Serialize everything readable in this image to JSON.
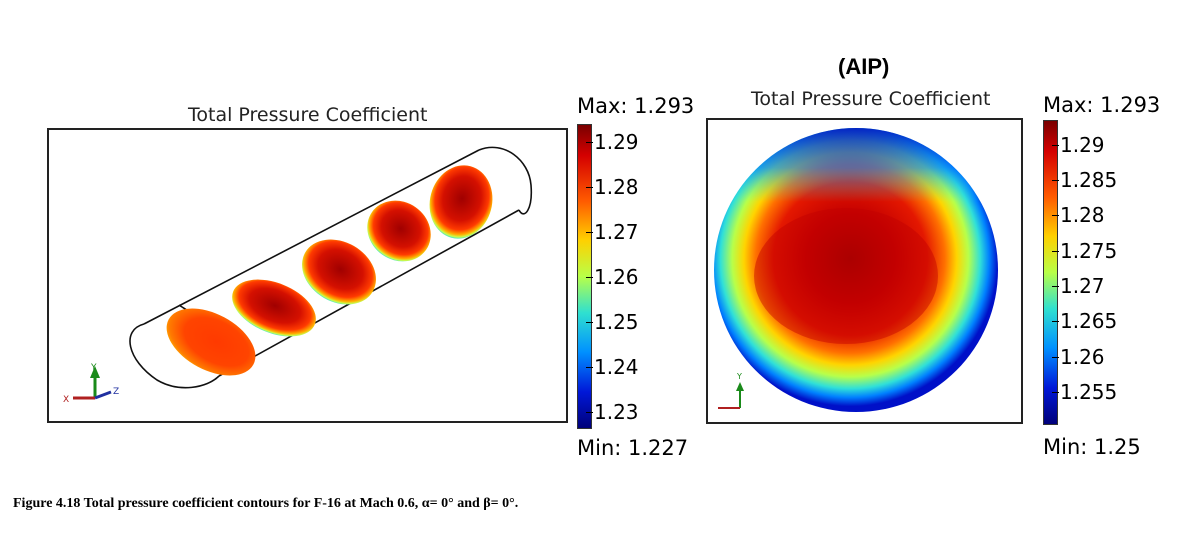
{
  "aip_label": "(AIP)",
  "left_panel": {
    "title": "Total Pressure Coefficient",
    "max_label": "Max: 1.293",
    "min_label": "Min: 1.227",
    "ticks": [
      "1.29",
      "1.28",
      "1.27",
      "1.26",
      "1.25",
      "1.24",
      "1.23"
    ],
    "axis_labels": {
      "x": "X",
      "y": "Y",
      "z": "Z"
    }
  },
  "right_panel": {
    "title": "Total Pressure Coefficient",
    "max_label": "Max: 1.293",
    "min_label": "Min: 1.25",
    "ticks": [
      "1.29",
      "1.285",
      "1.28",
      "1.275",
      "1.27",
      "1.265",
      "1.26",
      "1.255"
    ],
    "axis_labels": {
      "y": "Y"
    }
  },
  "caption": "Figure 4.18 Total pressure coefficient contours for F-16 at Mach 0.6, α= 0° and β= 0°.",
  "colors": {
    "colormap": [
      "#00007a",
      "#0018d8",
      "#0090ff",
      "#2fe0d0",
      "#b8ff48",
      "#ffd000",
      "#ff5a00",
      "#d40000",
      "#7a0000"
    ]
  }
}
